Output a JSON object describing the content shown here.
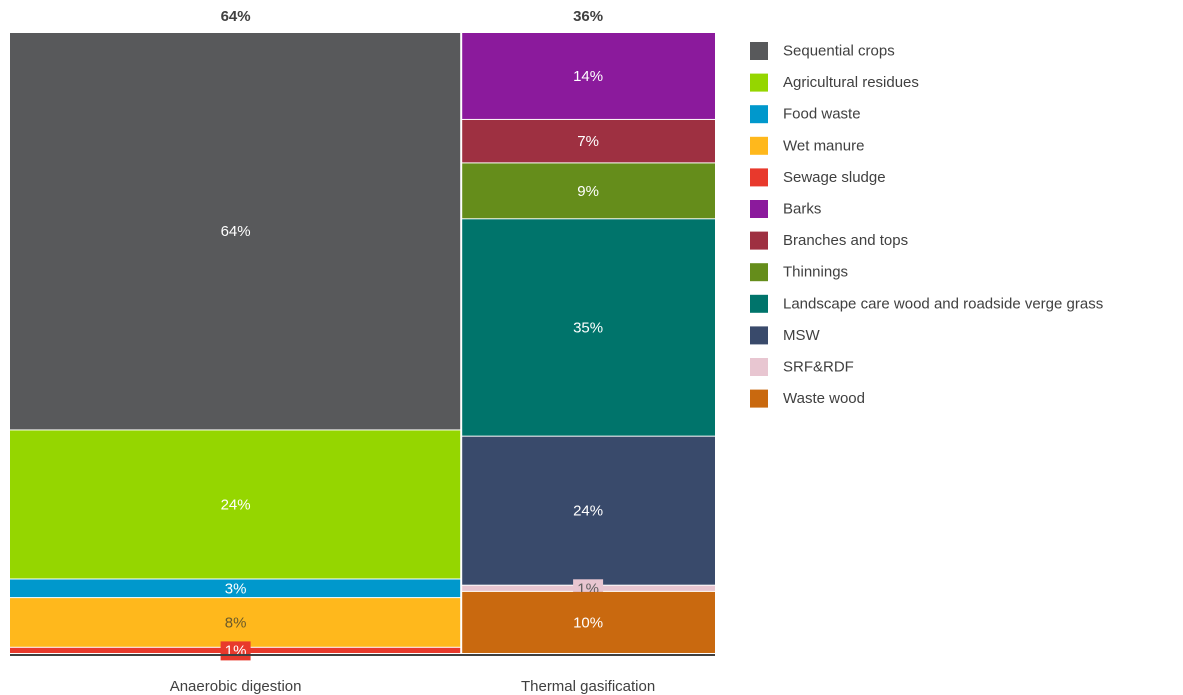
{
  "chart_data": {
    "type": "bar",
    "subtype": "marimekko",
    "columns": [
      {
        "category": "Anaerobic digestion",
        "total": "64%",
        "width_share": 64,
        "segments": [
          {
            "name": "Sequential crops",
            "value": 64,
            "label": "64%"
          },
          {
            "name": "Agricultural residues",
            "value": 24,
            "label": "24%"
          },
          {
            "name": "Food waste",
            "value": 3,
            "label": "3%"
          },
          {
            "name": "Wet manure",
            "value": 8,
            "label": "8%"
          },
          {
            "name": "Sewage sludge",
            "value": 1,
            "label": "1%"
          }
        ]
      },
      {
        "category": "Thermal gasification",
        "total": "36%",
        "width_share": 36,
        "segments": [
          {
            "name": "Barks",
            "value": 14,
            "label": "14%"
          },
          {
            "name": "Branches and tops",
            "value": 7,
            "label": "7%"
          },
          {
            "name": "Thinnings",
            "value": 9,
            "label": "9%"
          },
          {
            "name": "Landscape care wood and roadside verge grass",
            "value": 35,
            "label": "35%"
          },
          {
            "name": "MSW",
            "value": 24,
            "label": "24%"
          },
          {
            "name": "SRF&RDF",
            "value": 1,
            "label": "1%"
          },
          {
            "name": "Waste wood",
            "value": 10,
            "label": "10%"
          }
        ]
      }
    ],
    "legend": {
      "placement": "right",
      "entries": [
        {
          "name": "Sequential crops",
          "color": "#58595b"
        },
        {
          "name": "Agricultural residues",
          "color": "#95d600"
        },
        {
          "name": "Food waste",
          "color": "#0098cc"
        },
        {
          "name": "Wet manure",
          "color": "#ffb81c"
        },
        {
          "name": "Sewage sludge",
          "color": "#e8392c"
        },
        {
          "name": "Barks",
          "color": "#8b1a9c"
        },
        {
          "name": "Branches and tops",
          "color": "#9e3041"
        },
        {
          "name": "Thinnings",
          "color": "#658d1b"
        },
        {
          "name": "Landscape care wood and roadside verge grass",
          "color": "#00746b"
        },
        {
          "name": "MSW",
          "color": "#394a6b"
        },
        {
          "name": "SRF&RDF",
          "color": "#e8c6d1"
        },
        {
          "name": "Waste wood",
          "color": "#c9690f"
        }
      ]
    },
    "label_colors": {
      "Wet manure": "#6b5a2a",
      "SRF&RDF": "#606060",
      "default": "#ffffff"
    }
  }
}
